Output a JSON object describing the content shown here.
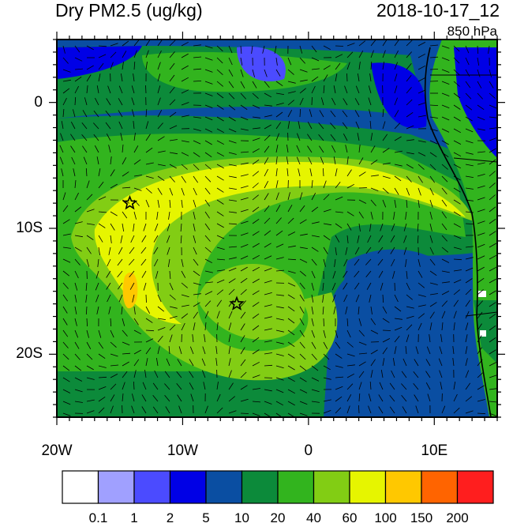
{
  "header": {
    "title_left": "Dry PM2.5 (ug/kg)",
    "title_right": "2018-10-17_12",
    "level": "850 hPa"
  },
  "map": {
    "lon_range": [
      -20,
      15
    ],
    "lat_range": [
      -25,
      5
    ],
    "lat_ticks": [
      {
        "value": 0,
        "label": "0"
      },
      {
        "value": -10,
        "label": "10S"
      },
      {
        "value": -20,
        "label": "20S"
      }
    ],
    "lon_ticks": [
      {
        "value": -20,
        "label": "20W"
      },
      {
        "value": -10,
        "label": "10W"
      },
      {
        "value": 0,
        "label": "0"
      },
      {
        "value": 10,
        "label": "10E"
      }
    ],
    "markers": [
      {
        "name": "star-marker-north",
        "lon": -14.2,
        "lat": -8.0
      },
      {
        "name": "star-marker-south",
        "lon": -5.7,
        "lat": -16.0
      }
    ]
  },
  "colorbar": {
    "colors": [
      "#ffffff",
      "#a0a0ff",
      "#4b4bff",
      "#0000e6",
      "#0a4ea2",
      "#0c8a3a",
      "#32b41e",
      "#82cd14",
      "#e6f500",
      "#ffc800",
      "#ff6400",
      "#ff1e1e"
    ],
    "labels": [
      "0.1",
      "1",
      "2",
      "5",
      "10",
      "20",
      "40",
      "60",
      "100",
      "150",
      "200"
    ]
  }
}
